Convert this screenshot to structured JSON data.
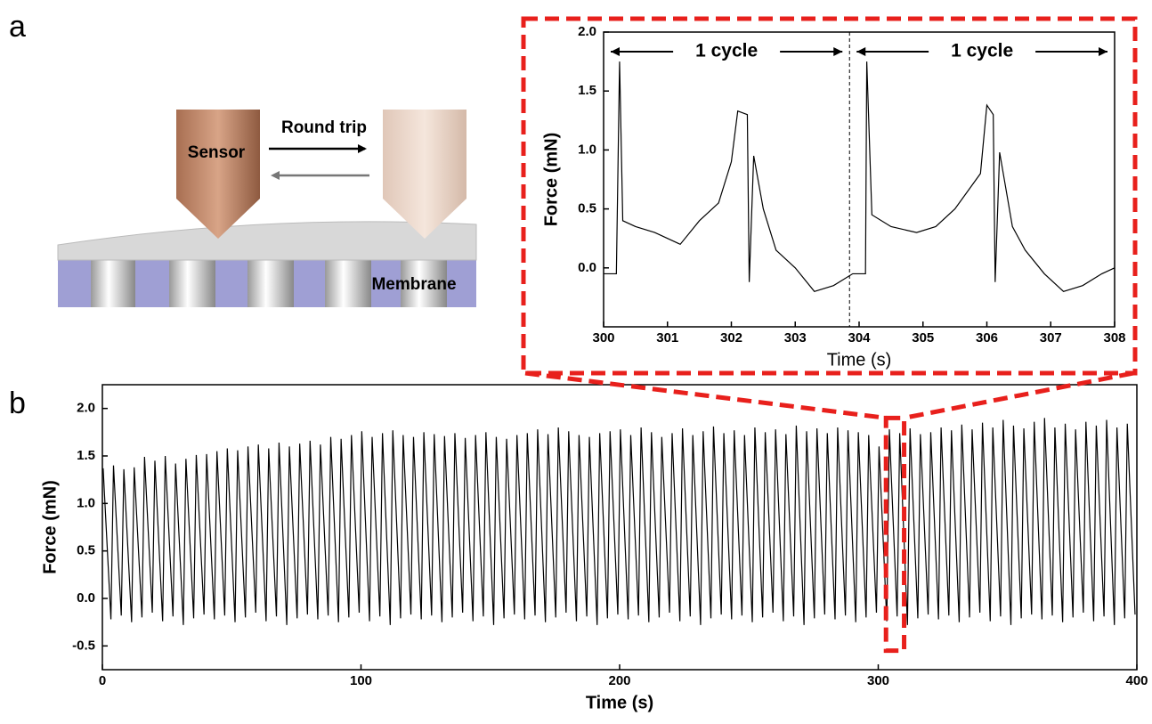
{
  "panels": [
    "a",
    "b"
  ],
  "illustration": {
    "sensor": "Sensor",
    "arrow": "Round trip",
    "membrane": "Membrane"
  },
  "chart_data": [
    {
      "type": "line",
      "x_label": "Time (s)",
      "y_label": "Force (mN)",
      "color": "#000000",
      "xlim": [
        300,
        308
      ],
      "xticks": [
        300,
        301,
        302,
        303,
        304,
        305,
        306,
        307,
        308
      ],
      "ylim": [
        -0.5,
        2.0
      ],
      "yticks": [
        {
          "value": 0,
          "label": "0.0"
        },
        {
          "value": 0.5,
          "label": "0.5"
        },
        {
          "value": 1,
          "label": "1.0"
        },
        {
          "value": 1.5,
          "label": "1.5"
        },
        {
          "value": 2,
          "label": "2.0"
        }
      ],
      "divider_x": 303.85,
      "annotations": [
        "1 cycle",
        "1 cycle"
      ],
      "x": [
        300.0,
        300.2,
        300.25,
        300.3,
        300.5,
        300.8,
        301.0,
        301.2,
        301.5,
        301.8,
        302.0,
        302.1,
        302.25,
        302.28,
        302.35,
        302.5,
        302.7,
        303.0,
        303.3,
        303.6,
        303.9,
        304.1,
        304.12,
        304.2,
        304.5,
        304.9,
        305.2,
        305.5,
        305.9,
        306.0,
        306.1,
        306.13,
        306.2,
        306.4,
        306.6,
        306.9,
        307.2,
        307.5,
        307.8,
        308.0
      ],
      "values": [
        -0.05,
        -0.05,
        1.75,
        0.4,
        0.35,
        0.3,
        0.25,
        0.2,
        0.4,
        0.55,
        0.9,
        1.33,
        1.3,
        -0.12,
        0.95,
        0.5,
        0.15,
        0.0,
        -0.2,
        -0.15,
        -0.05,
        -0.05,
        1.75,
        0.45,
        0.35,
        0.3,
        0.35,
        0.5,
        0.8,
        1.38,
        1.3,
        -0.12,
        0.98,
        0.35,
        0.15,
        -0.05,
        -0.2,
        -0.15,
        -0.05,
        0.0
      ]
    },
    {
      "type": "line",
      "x_label": "Time (s)",
      "y_label": "Force (mN)",
      "color": "#000000",
      "xlim": [
        0,
        400
      ],
      "xticks": [
        0,
        100,
        200,
        300,
        400
      ],
      "ylim": [
        -0.75,
        2.25
      ],
      "yticks": [
        {
          "value": -0.5,
          "label": "-0.5"
        },
        {
          "value": 0,
          "label": "0.0"
        },
        {
          "value": 0.5,
          "label": "0.5"
        },
        {
          "value": 1,
          "label": "1.0"
        },
        {
          "value": 1.5,
          "label": "1.5"
        },
        {
          "value": 2,
          "label": "2.0"
        }
      ],
      "highlight": {
        "x": [
          303,
          310
        ],
        "y": [
          -0.55,
          1.9
        ]
      },
      "x": [
        0.3,
        3.3,
        4.3,
        7.3,
        8.3,
        11.3,
        12.3,
        15.3,
        16.3,
        19.3,
        20.3,
        23.3,
        24.3,
        27.3,
        28.3,
        31.3,
        32.3,
        35.3,
        36.3,
        39.3,
        40.3,
        43.3,
        44.3,
        47.3,
        48.3,
        51.3,
        52.3,
        55.3,
        56.3,
        59.3,
        60.3,
        63.3,
        64.3,
        67.3,
        68.3,
        71.3,
        72.3,
        75.3,
        76.3,
        79.3,
        80.3,
        83.3,
        84.3,
        87.3,
        88.3,
        91.3,
        92.3,
        95.3,
        96.3,
        99.3,
        100.3,
        103.3,
        104.3,
        107.3,
        108.3,
        111.3,
        112.3,
        115.3,
        116.3,
        119.3,
        120.3,
        123.3,
        124.3,
        127.3,
        128.3,
        131.3,
        132.3,
        135.3,
        136.3,
        139.3,
        140.3,
        143.3,
        144.3,
        147.3,
        148.3,
        151.3,
        152.3,
        155.3,
        156.3,
        159.3,
        160.3,
        163.3,
        164.3,
        167.3,
        168.3,
        171.3,
        172.3,
        175.3,
        176.3,
        179.3,
        180.3,
        183.3,
        184.3,
        187.3,
        188.3,
        191.3,
        192.3,
        195.3,
        196.3,
        199.3,
        200.3,
        203.3,
        204.3,
        207.3,
        208.3,
        211.3,
        212.3,
        215.3,
        216.3,
        219.3,
        220.3,
        223.3,
        224.3,
        227.3,
        228.3,
        231.3,
        232.3,
        235.3,
        236.3,
        239.3,
        240.3,
        243.3,
        244.3,
        247.3,
        248.3,
        251.3,
        252.3,
        255.3,
        256.3,
        259.3,
        260.3,
        263.3,
        264.3,
        267.3,
        268.3,
        271.3,
        272.3,
        275.3,
        276.3,
        279.3,
        280.3,
        283.3,
        284.3,
        287.3,
        288.3,
        291.3,
        292.3,
        295.3,
        296.3,
        299.3,
        300.3,
        303.3,
        304.3,
        307.3,
        308.3,
        311.3,
        312.3,
        315.3,
        316.3,
        319.3,
        320.3,
        323.3,
        324.3,
        327.3,
        328.3,
        331.3,
        332.3,
        335.3,
        336.3,
        339.3,
        340.3,
        343.3,
        344.3,
        347.3,
        348.3,
        351.3,
        352.3,
        355.3,
        356.3,
        359.3,
        360.3,
        363.3,
        364.3,
        367.3,
        368.3,
        371.3,
        372.3,
        375.3,
        376.3,
        379.3,
        380.3,
        383.3,
        384.3,
        387.3,
        388.3,
        391.3,
        392.3,
        395.3,
        396.3,
        399.3
      ],
      "values": [
        1.37,
        -0.22,
        1.4,
        -0.18,
        1.36,
        -0.25,
        1.38,
        -0.2,
        1.49,
        -0.15,
        1.45,
        -0.24,
        1.5,
        -0.19,
        1.42,
        -0.28,
        1.47,
        -0.21,
        1.51,
        -0.17,
        1.52,
        -0.22,
        1.55,
        -0.18,
        1.58,
        -0.25,
        1.56,
        -0.2,
        1.6,
        -0.15,
        1.62,
        -0.24,
        1.58,
        -0.19,
        1.64,
        -0.28,
        1.6,
        -0.21,
        1.63,
        -0.17,
        1.66,
        -0.22,
        1.62,
        -0.18,
        1.7,
        -0.25,
        1.68,
        -0.2,
        1.72,
        -0.15,
        1.76,
        -0.24,
        1.7,
        -0.19,
        1.74,
        -0.28,
        1.77,
        -0.21,
        1.72,
        -0.17,
        1.7,
        -0.22,
        1.75,
        -0.18,
        1.73,
        -0.25,
        1.71,
        -0.2,
        1.74,
        -0.15,
        1.69,
        -0.24,
        1.72,
        -0.19,
        1.75,
        -0.28,
        1.7,
        -0.21,
        1.68,
        -0.17,
        1.72,
        -0.22,
        1.74,
        -0.18,
        1.78,
        -0.25,
        1.73,
        -0.2,
        1.8,
        -0.15,
        1.76,
        -0.24,
        1.72,
        -0.19,
        1.7,
        -0.28,
        1.74,
        -0.21,
        1.76,
        -0.17,
        1.78,
        -0.22,
        1.72,
        -0.18,
        1.8,
        -0.25,
        1.75,
        -0.2,
        1.7,
        -0.15,
        1.74,
        -0.24,
        1.79,
        -0.19,
        1.72,
        -0.28,
        1.76,
        -0.21,
        1.81,
        -0.17,
        1.74,
        -0.22,
        1.77,
        -0.18,
        1.72,
        -0.25,
        1.8,
        -0.2,
        1.75,
        -0.15,
        1.78,
        -0.24,
        1.73,
        -0.19,
        1.82,
        -0.28,
        1.76,
        -0.21,
        1.79,
        -0.17,
        1.74,
        -0.22,
        1.8,
        -0.18,
        1.77,
        -0.25,
        1.75,
        -0.2,
        1.72,
        -0.15,
        1.6,
        -0.24,
        1.78,
        -0.19,
        1.74,
        -0.28,
        1.79,
        -0.21,
        1.73,
        -0.17,
        1.75,
        -0.22,
        1.8,
        -0.18,
        1.77,
        -0.25,
        1.83,
        -0.2,
        1.78,
        -0.15,
        1.85,
        -0.24,
        1.8,
        -0.19,
        1.88,
        -0.28,
        1.82,
        -0.21,
        1.79,
        -0.17,
        1.86,
        -0.22,
        1.9,
        -0.18,
        1.8,
        -0.25,
        1.84,
        -0.2,
        1.78,
        -0.15,
        1.86,
        -0.24,
        1.82,
        -0.19,
        1.88,
        -0.28,
        1.8,
        -0.21,
        1.84,
        -0.17
      ]
    }
  ]
}
